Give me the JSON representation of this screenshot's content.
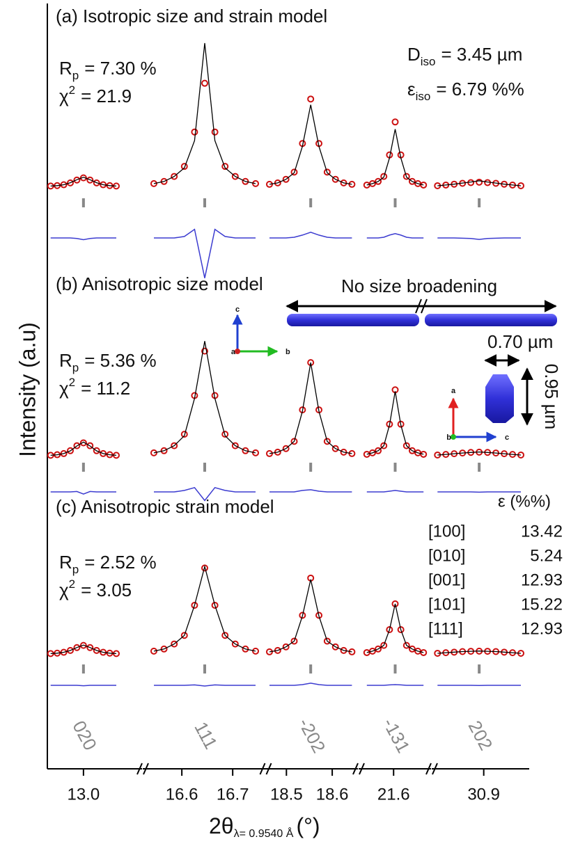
{
  "y_axis_label": "Intensity (a.u)",
  "x_axis_label": {
    "symbol": "2θ",
    "subscript": "λ= 0.9540 Å",
    "unit": "(°)"
  },
  "chart_data": {
    "type": "rietveld",
    "ylim": [
      0,
      100
    ],
    "colors": {
      "obs": "#cc1111",
      "calc": "#000000",
      "diff": "#3b3bd0",
      "reflection": "#888888"
    },
    "segments": [
      {
        "xlim": [
          12.78,
          13.34
        ],
        "xticks": [
          {
            "value": 13,
            "label": "13.0"
          }
        ],
        "x": [
          12.8,
          12.84,
          12.88,
          12.92,
          12.96,
          13.0,
          13.04,
          13.08,
          13.12,
          13.16,
          13.2
        ]
      },
      {
        "xlim": [
          16.53,
          16.76
        ],
        "xticks": [
          16.6,
          16.7
        ],
        "x": [
          16.545,
          16.565,
          16.585,
          16.605,
          16.625,
          16.645,
          16.665,
          16.685,
          16.705,
          16.725,
          16.745
        ]
      },
      {
        "xlim": [
          18.46,
          18.65
        ],
        "xticks": [
          18.5,
          18.6
        ],
        "x": [
          18.463,
          18.481,
          18.499,
          18.517,
          18.535,
          18.553,
          18.571,
          18.589,
          18.607,
          18.625,
          18.643
        ]
      },
      {
        "xlim": [
          21.5,
          21.71
        ],
        "xticks": [
          21.6
        ],
        "x": [
          21.515,
          21.533,
          21.551,
          21.569,
          21.587,
          21.605,
          21.623,
          21.641,
          21.659,
          21.677,
          21.695
        ]
      },
      {
        "xlim": [
          30.58,
          31.2
        ],
        "xticks": [
          30.9
        ],
        "x": [
          30.595,
          30.65,
          30.705,
          30.76,
          30.815,
          30.87,
          30.925,
          30.98,
          31.035,
          31.09,
          31.145
        ]
      }
    ],
    "reflections": {
      "x": [
        13.0,
        16.645,
        18.553,
        21.605,
        30.87
      ],
      "labels": [
        "020",
        "111",
        "-202",
        "-131",
        "202"
      ]
    },
    "panels": [
      {
        "title": "(a) Isotropic size and strain model",
        "stats": [
          {
            "symbol": "R",
            "subscript": "p",
            "text": "= 7.30 %"
          },
          {
            "symbol": "χ",
            "superscript": "2",
            "text": "= 21.9"
          }
        ],
        "params": [
          {
            "symbol": "D",
            "subscript": "iso",
            "text": "= 3.45 µm"
          },
          {
            "symbol": "ε",
            "subscript": "iso",
            "text": "=  6.79 %%"
          }
        ],
        "obs": [
          [
            0.3,
            0.6,
            1.2,
            2.5,
            4.5,
            6,
            4.5,
            2.5,
            1.2,
            0.6,
            0.3
          ],
          [
            2,
            3.5,
            7,
            14,
            38,
            72,
            38,
            14,
            7,
            3.5,
            2
          ],
          [
            1.5,
            2.5,
            5,
            10,
            30,
            61,
            30,
            10,
            5,
            2.5,
            1.5
          ],
          [
            1,
            2,
            3.5,
            7,
            22,
            45,
            22,
            7,
            3.5,
            2,
            1
          ],
          [
            0.5,
            1,
            1.6,
            2.2,
            2.7,
            3,
            2.7,
            2.2,
            1.6,
            1,
            0.5
          ]
        ],
        "calc": [
          [
            0.3,
            0.6,
            1.2,
            2.6,
            4.7,
            6.4,
            4.7,
            2.6,
            1.2,
            0.6,
            0.3
          ],
          [
            2,
            3.5,
            7,
            13,
            32,
            100,
            32,
            13,
            7,
            3.5,
            2
          ],
          [
            1.5,
            2.5,
            5,
            9.5,
            28,
            57,
            28,
            9.5,
            5,
            2.5,
            1.5
          ],
          [
            1,
            2,
            3.5,
            6.5,
            20,
            40,
            20,
            6.5,
            3.5,
            2,
            1
          ],
          [
            0.5,
            1,
            1.6,
            2.4,
            3.1,
            4,
            3.1,
            2.4,
            1.6,
            1,
            0.5
          ]
        ],
        "diff": [
          [
            0,
            0,
            0,
            0,
            -0.4,
            -1.2,
            -0.4,
            0,
            0,
            0,
            0
          ],
          [
            0,
            0,
            0,
            1,
            6,
            -28,
            6,
            1,
            0,
            0,
            0
          ],
          [
            0,
            0,
            0,
            0.5,
            2,
            4,
            2,
            0.5,
            0,
            0,
            0
          ],
          [
            0,
            0,
            0,
            0.5,
            2,
            3,
            2,
            0.5,
            0,
            0,
            0
          ],
          [
            0,
            0,
            0,
            -0.2,
            -0.4,
            -1,
            -0.4,
            -0.2,
            0,
            0,
            0
          ]
        ]
      },
      {
        "title": "(b) Anisotropic size model",
        "stats": [
          {
            "symbol": "R",
            "subscript": "p",
            "text": "= 5.36 %"
          },
          {
            "symbol": "χ",
            "superscript": "2",
            "text": "= 11.2"
          }
        ],
        "annotations": {
          "rod": "No size broadening",
          "width": "0.70 µm",
          "length": "0.95 µm",
          "axis_labels": [
            "c",
            "b",
            "a",
            "a",
            "c",
            "b"
          ]
        },
        "obs": [
          [
            0.3,
            0.7,
            1.5,
            3.5,
            7,
            9,
            7,
            3.5,
            1.5,
            0.7,
            0.3
          ],
          [
            2,
            3.5,
            7,
            15,
            42,
            73,
            42,
            15,
            7,
            3.5,
            2
          ],
          [
            1.5,
            2.5,
            5,
            10,
            32,
            65,
            32,
            10,
            5,
            2.5,
            1.5
          ],
          [
            1,
            2,
            3.5,
            7,
            22,
            46,
            22,
            7,
            3.5,
            2,
            1
          ],
          [
            0.5,
            0.9,
            1.4,
            1.9,
            2.3,
            2.5,
            2.3,
            1.9,
            1.4,
            0.9,
            0.5
          ]
        ],
        "calc": [
          [
            0.3,
            0.7,
            1.5,
            3.4,
            6.8,
            9.5,
            6.8,
            3.4,
            1.5,
            0.7,
            0.3
          ],
          [
            2,
            3.5,
            7,
            14,
            40,
            80,
            40,
            14,
            7,
            3.5,
            2
          ],
          [
            1.5,
            2.5,
            5,
            10,
            31,
            65,
            31,
            10,
            5,
            2.5,
            1.5
          ],
          [
            1,
            2,
            3.5,
            7,
            21.5,
            45,
            21.5,
            7,
            3.5,
            2,
            1
          ],
          [
            0.5,
            0.9,
            1.4,
            1.9,
            2.3,
            2.6,
            2.3,
            1.9,
            1.4,
            0.9,
            0.5
          ]
        ],
        "diff": [
          [
            0,
            0,
            0,
            0,
            0.3,
            -1.5,
            0.3,
            0,
            0,
            0,
            0
          ],
          [
            0,
            0,
            0,
            1,
            3,
            -6,
            3,
            1,
            0,
            0,
            0
          ],
          [
            0,
            0,
            0,
            0,
            1,
            1.5,
            0.5,
            0,
            0,
            0,
            0
          ],
          [
            0,
            0,
            0,
            0,
            0.5,
            1,
            0.5,
            0,
            0,
            0,
            0
          ],
          [
            0,
            0,
            0,
            0,
            0,
            -0.2,
            0,
            0,
            0,
            0,
            0
          ]
        ]
      },
      {
        "title": "(c) Anisotropic strain model",
        "stats": [
          {
            "symbol": "R",
            "subscript": "p",
            "text": "= 2.52 %"
          },
          {
            "symbol": "χ",
            "superscript": "2",
            "text": "= 3.05"
          }
        ],
        "table": {
          "header": "ε (%%)",
          "rows": [
            [
              "[100]",
              "13.42"
            ],
            [
              "[010]",
              "5.24"
            ],
            [
              "[001]",
              "12.93"
            ],
            [
              "[101]",
              "15.22"
            ],
            [
              "[111]",
              "12.93"
            ]
          ]
        },
        "obs": [
          [
            0.3,
            0.6,
            1.2,
            2.5,
            4.5,
            6,
            4.5,
            2.5,
            1.2,
            0.6,
            0.3
          ],
          [
            2,
            3.5,
            7,
            13,
            34,
            60,
            34,
            13,
            7,
            3.5,
            2
          ],
          [
            1.5,
            2.5,
            5,
            9,
            27,
            53,
            27,
            9,
            5,
            2.5,
            1.5
          ],
          [
            1,
            2,
            3.5,
            6,
            17,
            35,
            17,
            6,
            3.5,
            2,
            1
          ],
          [
            0.5,
            0.9,
            1.3,
            1.7,
            1.9,
            2,
            1.9,
            1.7,
            1.3,
            0.9,
            0.5
          ]
        ],
        "calc": [
          [
            0.3,
            0.6,
            1.2,
            2.5,
            4.5,
            6.2,
            4.5,
            2.5,
            1.2,
            0.6,
            0.3
          ],
          [
            2,
            3.5,
            7,
            13,
            34,
            61,
            34,
            13,
            7,
            3.5,
            2
          ],
          [
            1.5,
            2.5,
            5,
            9,
            26.5,
            52,
            26.5,
            9,
            5,
            2.5,
            1.5
          ],
          [
            1,
            2,
            3.5,
            6,
            17,
            35,
            17,
            6,
            3.5,
            2,
            1
          ],
          [
            0.5,
            0.9,
            1.3,
            1.7,
            1.9,
            2.1,
            1.9,
            1.7,
            1.3,
            0.9,
            0.5
          ]
        ],
        "diff": [
          [
            0,
            0,
            0,
            0,
            0,
            -0.3,
            0,
            0,
            0,
            0,
            0
          ],
          [
            0,
            0,
            0,
            0,
            0.3,
            -0.5,
            0.3,
            0,
            0,
            0,
            0
          ],
          [
            0,
            0,
            0,
            0,
            0.5,
            1.5,
            0.5,
            0,
            0,
            0,
            0
          ],
          [
            0,
            0,
            0,
            0,
            0.3,
            0.5,
            0.3,
            0,
            0,
            0,
            0
          ],
          [
            0,
            0,
            0,
            0,
            0,
            -0.1,
            0,
            0,
            0,
            0,
            0
          ]
        ]
      }
    ]
  }
}
